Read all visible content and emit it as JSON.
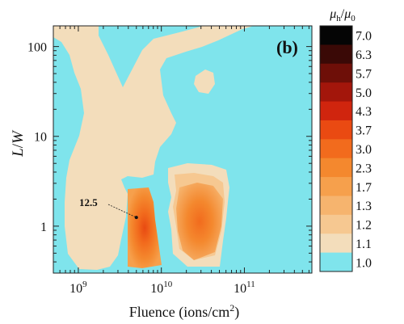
{
  "chart_data": {
    "type": "heatmap",
    "panel_label": "(b)",
    "xlabel_main": "Fluence (ions/cm",
    "xlabel_sup": "2",
    "xlabel_tail": ")",
    "ylabel_main": "L",
    "ylabel_slash": "/",
    "ylabel_tail": "W",
    "x_scale": "log",
    "y_scale": "log",
    "xlim": [
      500000000.0,
      650000000000.0
    ],
    "ylim": [
      0.3,
      170
    ],
    "x_ticks": [
      {
        "value": 1000000000.0,
        "base": "10",
        "exp": "9"
      },
      {
        "value": 10000000000.0,
        "base": "10",
        "exp": "10"
      },
      {
        "value": 100000000000.0,
        "base": "10",
        "exp": "11"
      }
    ],
    "y_ticks": [
      {
        "value": 1,
        "label": "1"
      },
      {
        "value": 10,
        "label": "10"
      },
      {
        "value": 100,
        "label": "100"
      }
    ],
    "colorbar": {
      "title_mu": "μ",
      "title_sub": "h",
      "title_slash": "/",
      "title_sub0": "0",
      "levels": [
        {
          "label": "7.0",
          "color": "#050505"
        },
        {
          "label": "6.3",
          "color": "#3a0906"
        },
        {
          "label": "5.7",
          "color": "#6e0f08"
        },
        {
          "label": "5.0",
          "color": "#a3160b"
        },
        {
          "label": "4.3",
          "color": "#d0250e"
        },
        {
          "label": "3.7",
          "color": "#ea4a12"
        },
        {
          "label": "3.0",
          "color": "#f26b1d"
        },
        {
          "label": "2.3",
          "color": "#f4882e"
        },
        {
          "label": "1.7",
          "color": "#f6a04c"
        },
        {
          "label": "1.3",
          "color": "#f6b46e"
        },
        {
          "label": "1.2",
          "color": "#f6c891"
        },
        {
          "label": "1.1",
          "color": "#f3ddbb"
        },
        {
          "label": "1.0",
          "color": "#7fe4ec"
        }
      ]
    },
    "annotation": {
      "label": "12.5",
      "x": 5000000000.0,
      "y": 1.25
    },
    "colors": {
      "background_level": "#7fe4ec",
      "level_1_1": "#f3ddbb",
      "level_1_3": "#f6b46e",
      "level_2_3": "#f4882e",
      "level_3_0": "#f26b1d",
      "level_3_7": "#ea4a12"
    }
  }
}
